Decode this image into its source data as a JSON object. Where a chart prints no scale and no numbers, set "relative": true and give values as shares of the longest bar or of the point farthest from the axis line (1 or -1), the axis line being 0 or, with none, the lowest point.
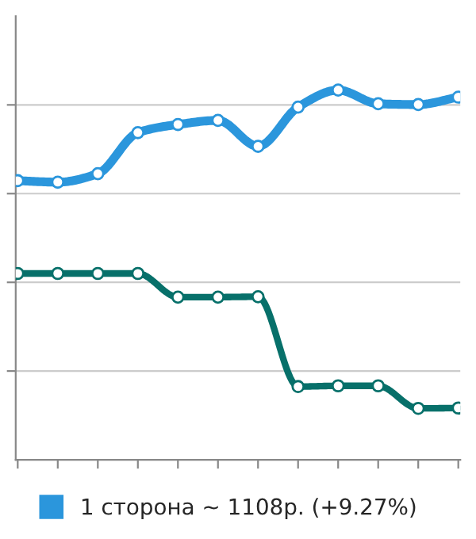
{
  "chart_data": {
    "type": "line",
    "relative": true,
    "categories": [
      null,
      null,
      null,
      null,
      null,
      null,
      null,
      null,
      null,
      null,
      null,
      null
    ],
    "series": [
      {
        "name": "1 сторона ~ 1108р. (+9.27%)",
        "color": "#2b96dc",
        "values": [
          0.755,
          0.751,
          0.774,
          0.885,
          0.907,
          0.918,
          0.848,
          0.954,
          1.0,
          0.963,
          0.961,
          0.981
        ]
      },
      {
        "color": "#07706a",
        "values": [
          0.504,
          0.504,
          0.504,
          0.504,
          0.44,
          0.44,
          0.441,
          0.198,
          0.2,
          0.2,
          0.139,
          0.14
        ]
      }
    ],
    "marker": "circle",
    "line_style": "solid",
    "grid": "y",
    "legend": "bottom"
  }
}
